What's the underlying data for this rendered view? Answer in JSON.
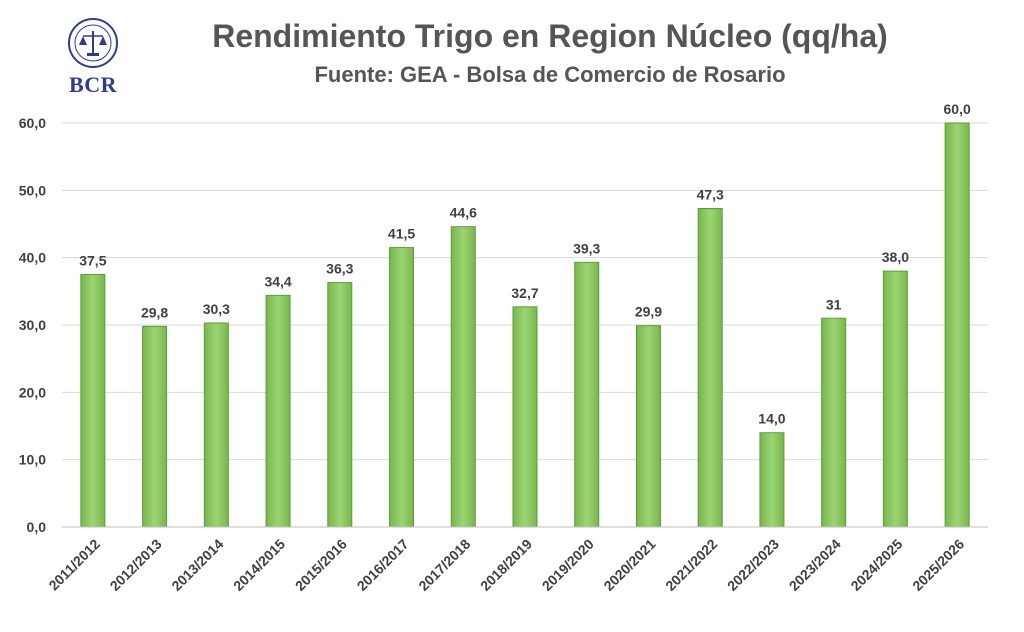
{
  "logo": {
    "text": "BCR",
    "brand_color": "#2e3d8f"
  },
  "colors": {
    "bar_fill": "#8fc866",
    "bar_edge": "#5f9a3c",
    "gridline": "#d9d9d9",
    "text": "#404040"
  },
  "chart_data": {
    "type": "bar",
    "title": "Rendimiento Trigo en Region Núcleo (qq/ha)",
    "subtitle": "Fuente: GEA - Bolsa de Comercio de Rosario",
    "categories": [
      "2011/2012",
      "2012/2013",
      "2013/2014",
      "2014/2015",
      "2015/2016",
      "2016/2017",
      "2017/2018",
      "2018/2019",
      "2019/2020",
      "2020/2021",
      "2021/2022",
      "2022/2023",
      "2023/2024",
      "2024/2025",
      "2025/2026"
    ],
    "values": [
      37.5,
      29.8,
      30.3,
      34.4,
      36.3,
      41.5,
      44.6,
      32.7,
      39.3,
      29.9,
      47.3,
      14.0,
      31,
      38.0,
      60.0
    ],
    "data_labels": [
      "37,5",
      "29,8",
      "30,3",
      "34,4",
      "36,3",
      "41,5",
      "44,6",
      "32,7",
      "39,3",
      "29,9",
      "47,3",
      "14,0",
      "31",
      "38,0",
      "60,0"
    ],
    "yticks": [
      0,
      10,
      20,
      30,
      40,
      50,
      60
    ],
    "ytick_labels": [
      "0,0",
      "10,0",
      "20,0",
      "30,0",
      "40,0",
      "50,0",
      "60,0"
    ],
    "ylim": [
      0,
      60
    ],
    "grid": true,
    "legend": "none"
  }
}
